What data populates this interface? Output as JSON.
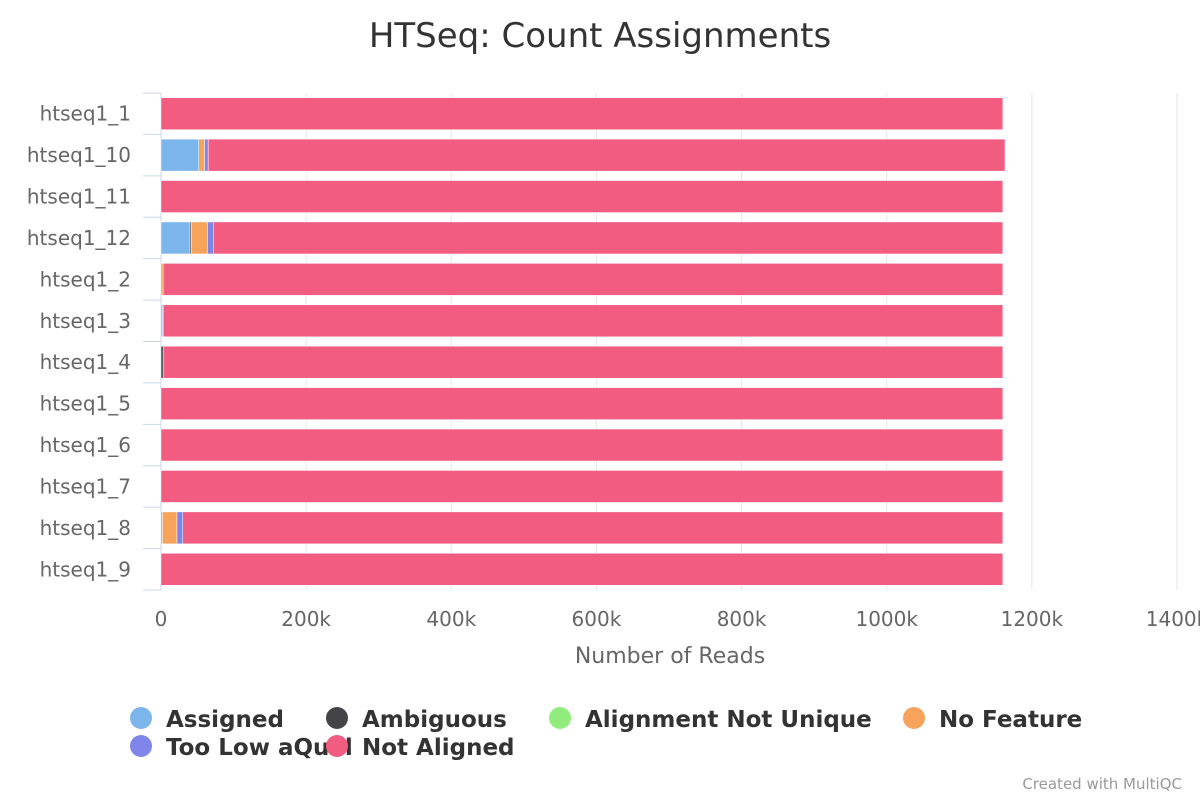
{
  "chart_data": {
    "type": "bar",
    "orientation": "horizontal",
    "stacked": true,
    "title": "HTSeq: Count Assignments",
    "xlabel": "Number of Reads",
    "ylabel": "",
    "xlim": [
      0,
      1400000
    ],
    "x_ticks": [
      0,
      200000,
      400000,
      600000,
      800000,
      1000000,
      1200000,
      1400000
    ],
    "x_tick_labels": [
      "0",
      "200k",
      "400k",
      "600k",
      "800k",
      "1000k",
      "1200k",
      "1400k"
    ],
    "grid": true,
    "legend_position": "bottom",
    "categories": [
      "htseq1_1",
      "htseq1_10",
      "htseq1_11",
      "htseq1_12",
      "htseq1_2",
      "htseq1_3",
      "htseq1_4",
      "htseq1_5",
      "htseq1_6",
      "htseq1_7",
      "htseq1_8",
      "htseq1_9"
    ],
    "series": [
      {
        "name": "Assigned",
        "color": "#7cb5ec",
        "values": [
          0,
          52000,
          0,
          40000,
          0,
          2000,
          0,
          0,
          0,
          0,
          2000,
          0
        ]
      },
      {
        "name": "Ambiguous",
        "color": "#434348",
        "values": [
          0,
          0,
          0,
          2000,
          0,
          0,
          3000,
          0,
          0,
          0,
          0,
          0
        ]
      },
      {
        "name": "Alignment Not Unique",
        "color": "#90ed7d",
        "values": [
          0,
          0,
          0,
          0,
          0,
          0,
          0,
          0,
          0,
          0,
          0,
          0
        ]
      },
      {
        "name": "No Feature",
        "color": "#f7a35c",
        "values": [
          0,
          8000,
          0,
          22000,
          3000,
          0,
          0,
          0,
          0,
          0,
          20000,
          0
        ]
      },
      {
        "name": "Too Low aQual",
        "color": "#8085e9",
        "values": [
          0,
          5000,
          0,
          8000,
          0,
          1000,
          0,
          0,
          0,
          0,
          8000,
          0
        ]
      },
      {
        "name": "Not Aligned",
        "color": "#f15c80",
        "values": [
          1160000,
          1098000,
          1160000,
          1088000,
          1157000,
          1157000,
          1157000,
          1160000,
          1160000,
          1160000,
          1130000,
          1160000
        ]
      }
    ]
  },
  "credit": "Created with MultiQC"
}
